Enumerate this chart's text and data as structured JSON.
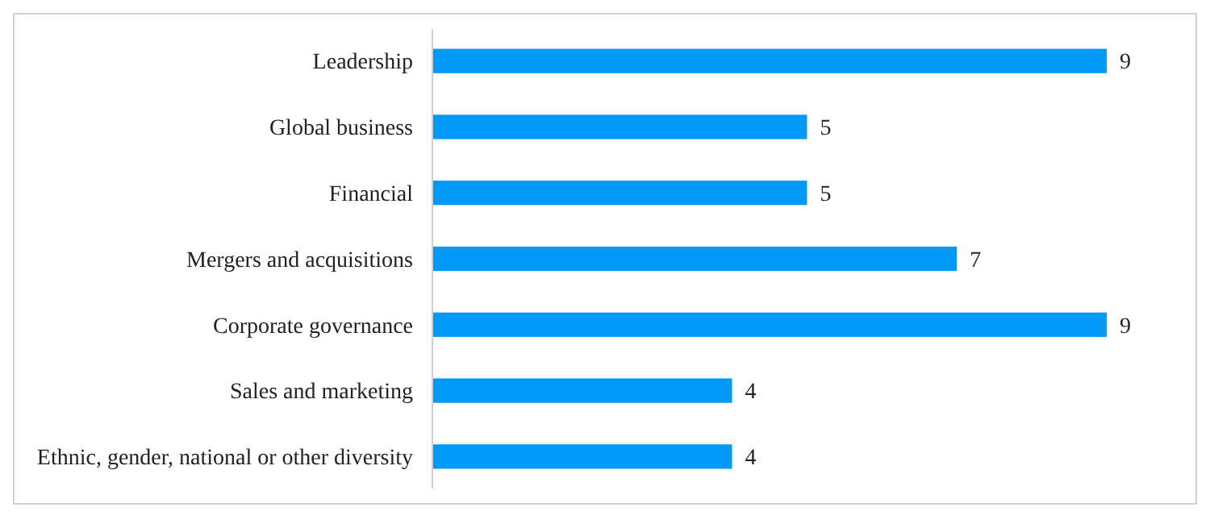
{
  "chart_data": {
    "type": "bar",
    "orientation": "horizontal",
    "categories": [
      "Leadership",
      "Global business",
      "Financial",
      "Mergers and acquisitions",
      "Corporate governance",
      "Sales and marketing",
      "Ethnic, gender, national or other diversity"
    ],
    "values": [
      9,
      5,
      5,
      7,
      9,
      4,
      4
    ],
    "color": "#0099f7",
    "data_labels": true
  }
}
